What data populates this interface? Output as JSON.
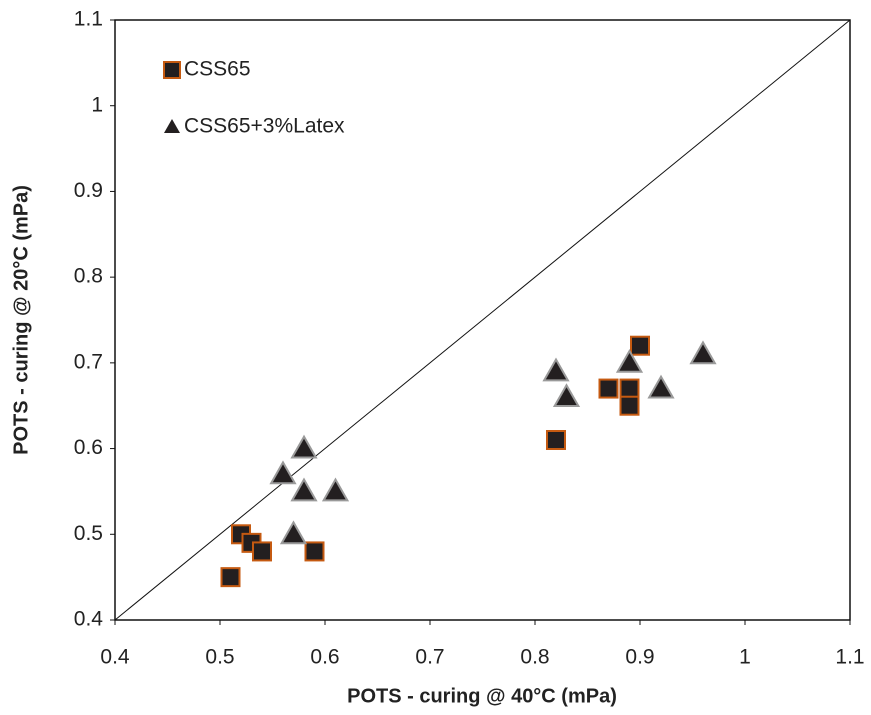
{
  "chart_data": {
    "type": "scatter",
    "xlabel": "POTS - curing @ 40°C (mPa)",
    "ylabel": "POTS - curing @ 20°C (mPa)",
    "xlim": [
      0.4,
      1.1
    ],
    "ylim": [
      0.4,
      1.1
    ],
    "xticks": [
      0.4,
      0.5,
      0.6,
      0.7,
      0.8,
      0.9,
      1,
      1.1
    ],
    "yticks": [
      0.4,
      0.5,
      0.6,
      0.7,
      0.8,
      0.9,
      1,
      1.1
    ],
    "legend": "upper left",
    "series": [
      {
        "name": "CSS65",
        "color": "#231f20",
        "edgecolor": "#c55a11",
        "marker": "square",
        "x": [
          0.51,
          0.52,
          0.53,
          0.54,
          0.59,
          0.82,
          0.87,
          0.89,
          0.89,
          0.9
        ],
        "values": [
          0.45,
          0.5,
          0.49,
          0.48,
          0.48,
          0.61,
          0.67,
          0.67,
          0.65,
          0.72
        ]
      },
      {
        "name": "CSS65+3%Latex",
        "color": "#231f20",
        "edgecolor": "#9a9a9a",
        "marker": "triangle",
        "x": [
          0.56,
          0.58,
          0.58,
          0.61,
          0.57,
          0.82,
          0.83,
          0.89,
          0.92,
          0.96
        ],
        "values": [
          0.57,
          0.6,
          0.55,
          0.55,
          0.5,
          0.69,
          0.66,
          0.7,
          0.67,
          0.71
        ]
      }
    ]
  }
}
